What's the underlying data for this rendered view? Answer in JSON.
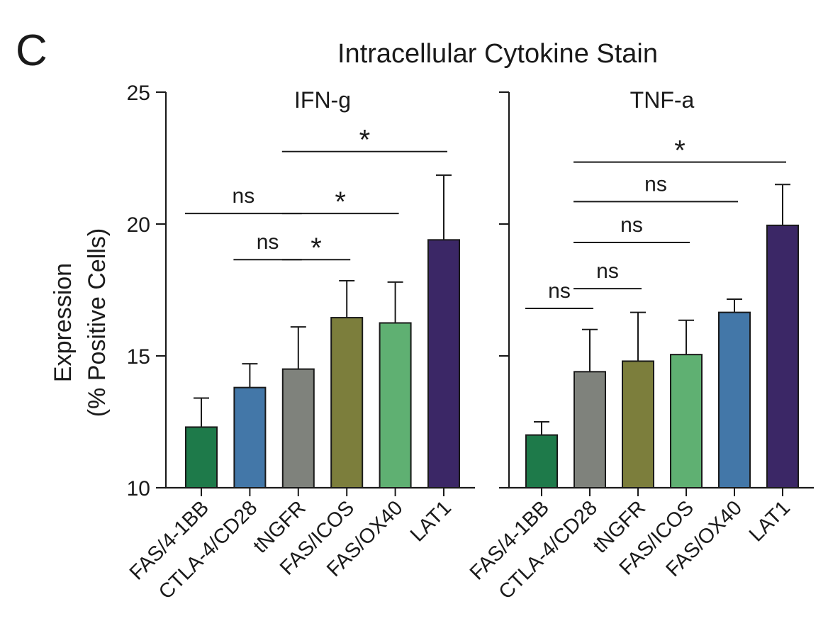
{
  "panel_letter": "C",
  "title": "Intracellular Cytokine Stain",
  "ylabel_line1": "Expression",
  "ylabel_line2": "(% Positive Cells)",
  "chart_data": [
    {
      "type": "bar",
      "title": "IFN-g",
      "ylim": [
        10,
        25
      ],
      "yticks": [
        10,
        15,
        20,
        25
      ],
      "categories": [
        "FAS/4-1BB",
        "CTLA-4/CD28",
        "tNGFR",
        "FAS/ICOS",
        "FAS/OX40",
        "LAT1"
      ],
      "values": [
        12.3,
        13.8,
        14.5,
        16.45,
        16.25,
        19.4
      ],
      "errors": [
        1.1,
        0.9,
        1.6,
        1.4,
        1.55,
        2.45
      ],
      "colors": [
        "#1e7a4a",
        "#4377a8",
        "#7f827c",
        "#7c7e3c",
        "#5fb072",
        "#3b2766"
      ],
      "significance": [
        {
          "from": "FAS/4-1BB",
          "to": "tNGFR",
          "y": 20.4,
          "label": "ns"
        },
        {
          "from": "CTLA-4/CD28",
          "to": "tNGFR",
          "y": 18.65,
          "label": "ns"
        },
        {
          "from": "tNGFR",
          "to": "FAS/ICOS",
          "y": 18.65,
          "label": "*"
        },
        {
          "from": "tNGFR",
          "to": "FAS/OX40",
          "y": 20.4,
          "label": "*"
        },
        {
          "from": "tNGFR",
          "to": "LAT1",
          "y": 22.75,
          "label": "*"
        }
      ]
    },
    {
      "type": "bar",
      "title": "TNF-a",
      "ylim": [
        10,
        25
      ],
      "yticks": [
        10,
        15,
        20,
        25
      ],
      "categories": [
        "FAS/4-1BB",
        "CTLA-4/CD28",
        "tNGFR",
        "FAS/ICOS",
        "FAS/OX40",
        "LAT1"
      ],
      "values": [
        12.0,
        14.4,
        14.8,
        15.05,
        16.65,
        19.95
      ],
      "errors": [
        0.5,
        1.6,
        1.85,
        1.3,
        0.5,
        1.55
      ],
      "colors": [
        "#1e7a4a",
        "#7f827c",
        "#7c7e3c",
        "#5fb072",
        "#4377a8",
        "#3b2766"
      ],
      "significance": [
        {
          "from": "FAS/4-1BB",
          "to": "CTLA-4/CD28",
          "y": 16.8,
          "label": "ns"
        },
        {
          "from": "CTLA-4/CD28",
          "to": "tNGFR",
          "y": 17.55,
          "label": "ns"
        },
        {
          "from": "CTLA-4/CD28",
          "to": "FAS/ICOS",
          "y": 19.3,
          "label": "ns"
        },
        {
          "from": "CTLA-4/CD28",
          "to": "FAS/OX40",
          "y": 20.85,
          "label": "ns"
        },
        {
          "from": "CTLA-4/CD28",
          "to": "LAT1",
          "y": 22.35,
          "label": "*"
        }
      ]
    }
  ]
}
